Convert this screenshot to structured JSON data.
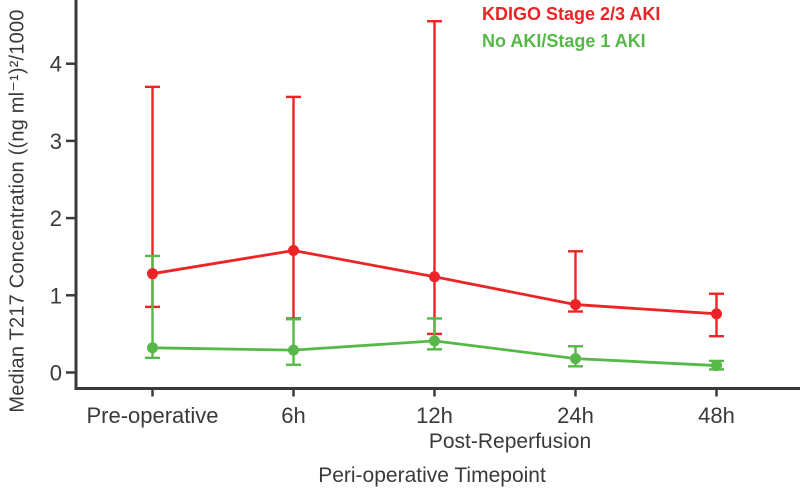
{
  "chart_data": {
    "type": "line",
    "title": "",
    "categories": [
      "Pre-operative",
      "6h",
      "12h",
      "24h",
      "48h"
    ],
    "x_group_label": "Post-Reperfusion",
    "xlabel": "Peri-operative Timepoint",
    "ylabel": "Median T217 Concentration ((ng ml⁻¹)²/1000",
    "yticks": [
      0,
      1,
      2,
      3,
      4
    ],
    "ylim": [
      0,
      4.85
    ],
    "grid": false,
    "legend_position": "top-right",
    "error_bar_style": "median with whisker caps",
    "axis_color": "#3a3a3a",
    "series": [
      {
        "name": "KDIGO Stage 2/3 AKI",
        "color": "#ec2426",
        "values": [
          1.28,
          1.58,
          1.24,
          0.88,
          0.76
        ],
        "error_low": [
          0.85,
          0.7,
          0.5,
          0.79,
          0.47
        ],
        "error_high": [
          3.7,
          3.57,
          4.55,
          1.57,
          1.02
        ]
      },
      {
        "name": "No AKI/Stage 1 AKI",
        "color": "#56b848",
        "values": [
          0.32,
          0.29,
          0.41,
          0.18,
          0.09
        ],
        "error_low": [
          0.19,
          0.1,
          0.3,
          0.08,
          0.04
        ],
        "error_high": [
          1.51,
          0.69,
          0.7,
          0.34,
          0.15
        ]
      }
    ]
  }
}
